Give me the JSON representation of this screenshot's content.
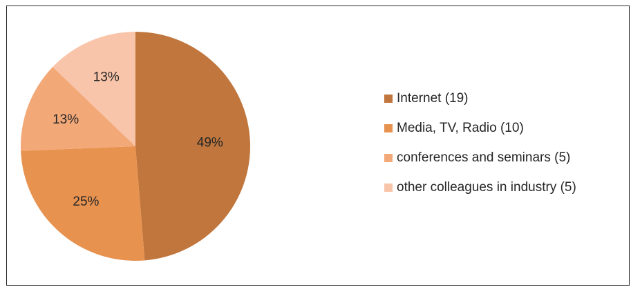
{
  "chart_data": {
    "type": "pie",
    "title": "",
    "start_angle_deg": 0,
    "direction": "clockwise",
    "slices": [
      {
        "label": "Internet (19)",
        "value": 19,
        "percent_label": "49%",
        "color": "#C0763D"
      },
      {
        "label": "Media, TV, Radio (10)",
        "value": 10,
        "percent_label": "25%",
        "color": "#E8924F"
      },
      {
        "label": "conferences and seminars (5)",
        "value": 5,
        "percent_label": "13%",
        "color": "#F3A878"
      },
      {
        "label": "other colleagues in industry (5)",
        "value": 5,
        "percent_label": "13%",
        "color": "#F9C5AA"
      }
    ],
    "legend_position": "right"
  }
}
